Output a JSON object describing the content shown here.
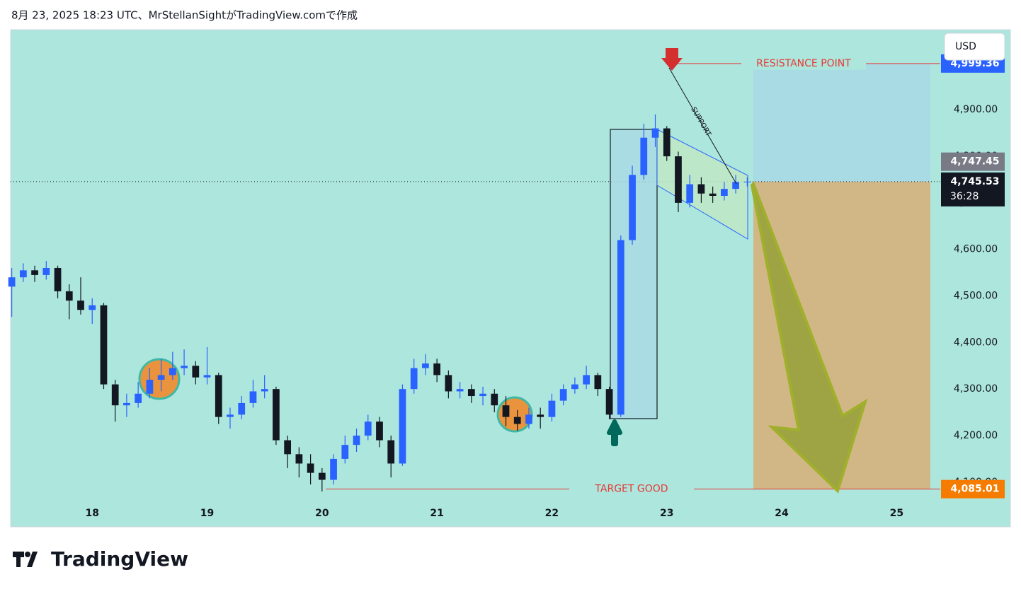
{
  "header": "8月 23, 2025 18:23 UTC、MrStellanSightがTradingView.comで作成",
  "logo": "TradingView",
  "currency": "USD",
  "chart_data": {
    "type": "candlestick",
    "x": [
      17.3,
      17.4,
      17.5,
      17.6,
      17.7,
      17.8,
      17.9,
      18.0,
      18.1,
      18.2,
      18.3,
      18.4,
      18.5,
      18.6,
      18.7,
      18.8,
      18.9,
      19.0,
      19.1,
      19.2,
      19.3,
      19.4,
      19.5,
      19.6,
      19.7,
      19.8,
      19.9,
      20.0,
      20.1,
      20.2,
      20.3,
      20.4,
      20.5,
      20.6,
      20.7,
      20.8,
      20.9,
      21.0,
      21.1,
      21.2,
      21.3,
      21.4,
      21.5,
      21.6,
      21.7,
      21.8,
      21.9,
      22.0,
      22.1,
      22.2,
      22.3,
      22.4,
      22.5,
      22.6,
      22.7,
      22.8,
      22.9,
      23.0,
      23.1,
      23.2,
      23.3,
      23.4,
      23.5,
      23.6,
      23.7
    ],
    "open": [
      4520,
      4540,
      4555,
      4545,
      4560,
      4510,
      4490,
      4470,
      4480,
      4310,
      4265,
      4270,
      4290,
      4320,
      4330,
      4345,
      4350,
      4325,
      4330,
      4240,
      4245,
      4270,
      4295,
      4300,
      4190,
      4160,
      4140,
      4120,
      4105,
      4150,
      4180,
      4200,
      4230,
      4190,
      4140,
      4300,
      4345,
      4355,
      4330,
      4295,
      4300,
      4285,
      4290,
      4265,
      4240,
      4225,
      4245,
      4240,
      4275,
      4300,
      4310,
      4330,
      4300,
      4245,
      4620,
      4760,
      4840,
      4860,
      4800,
      4700,
      4740,
      4720,
      4715,
      4730,
      4745
    ],
    "close": [
      4540,
      4555,
      4545,
      4560,
      4510,
      4490,
      4470,
      4480,
      4310,
      4265,
      4270,
      4290,
      4320,
      4330,
      4345,
      4350,
      4325,
      4330,
      4240,
      4245,
      4270,
      4295,
      4300,
      4190,
      4160,
      4140,
      4120,
      4105,
      4150,
      4180,
      4200,
      4230,
      4190,
      4140,
      4300,
      4345,
      4355,
      4330,
      4295,
      4300,
      4285,
      4290,
      4265,
      4240,
      4225,
      4245,
      4240,
      4275,
      4300,
      4310,
      4330,
      4300,
      4245,
      4620,
      4760,
      4840,
      4860,
      4800,
      4700,
      4740,
      4720,
      4715,
      4730,
      4745,
      4745.53
    ],
    "high": [
      4560,
      4570,
      4565,
      4575,
      4565,
      4525,
      4540,
      4495,
      4485,
      4320,
      4290,
      4315,
      4345,
      4365,
      4380,
      4385,
      4360,
      4390,
      4335,
      4260,
      4285,
      4320,
      4330,
      4305,
      4200,
      4175,
      4160,
      4130,
      4160,
      4200,
      4215,
      4245,
      4240,
      4200,
      4310,
      4365,
      4375,
      4365,
      4340,
      4315,
      4310,
      4305,
      4300,
      4285,
      4255,
      4260,
      4260,
      4290,
      4310,
      4325,
      4350,
      4335,
      4305,
      4630,
      4780,
      4870,
      4890,
      4865,
      4810,
      4760,
      4755,
      4735,
      4745,
      4760,
      4755
    ],
    "low": [
      4455,
      4530,
      4530,
      4535,
      4495,
      4450,
      4460,
      4440,
      4300,
      4230,
      4240,
      4260,
      4280,
      4295,
      4320,
      4330,
      4310,
      4310,
      4225,
      4215,
      4235,
      4260,
      4280,
      4180,
      4130,
      4110,
      4095,
      4080,
      4095,
      4140,
      4165,
      4190,
      4175,
      4110,
      4135,
      4290,
      4330,
      4315,
      4280,
      4280,
      4270,
      4265,
      4250,
      4220,
      4210,
      4215,
      4215,
      4230,
      4265,
      4290,
      4300,
      4285,
      4235,
      4240,
      4610,
      4750,
      4820,
      4790,
      4680,
      4690,
      4700,
      4700,
      4705,
      4720,
      4735
    ],
    "up_color": "#2962ff",
    "down_color": "#131722",
    "xlim": [
      17.29,
      25.38
    ],
    "xticks": [
      18,
      19,
      20,
      21,
      22,
      23,
      24,
      25
    ],
    "ylim": [
      4004,
      5072
    ],
    "yticks": [
      {
        "value": 4100,
        "label": "4,100.00"
      },
      {
        "value": 4200,
        "label": "4,200.00"
      },
      {
        "value": 4300,
        "label": "4,300.00"
      },
      {
        "value": 4400,
        "label": "4,400.00"
      },
      {
        "value": 4500,
        "label": "4,500.00"
      },
      {
        "value": 4600,
        "label": "4,600.00"
      },
      {
        "value": 4700,
        "label": "4,700.00"
      },
      {
        "value": 4800,
        "label": "4,800.00"
      },
      {
        "value": 4900,
        "label": "4,900.00"
      }
    ],
    "price_labels": [
      {
        "value": 4999.36,
        "label": "4,999.36",
        "color": "#2962ff"
      },
      {
        "value": 4747.45,
        "label": "4,747.45",
        "color": "#787b86"
      },
      {
        "value": 4745.53,
        "label": "4,745.53",
        "color": "#131722"
      },
      {
        "value": 4085.01,
        "label": "4,085.01",
        "color": "#f57c00"
      }
    ],
    "countdown": "36:28",
    "annotations": {
      "resistance": "RESISTANCE POINT",
      "support": "SUPPORT",
      "target": "TARGET GOOD"
    }
  }
}
